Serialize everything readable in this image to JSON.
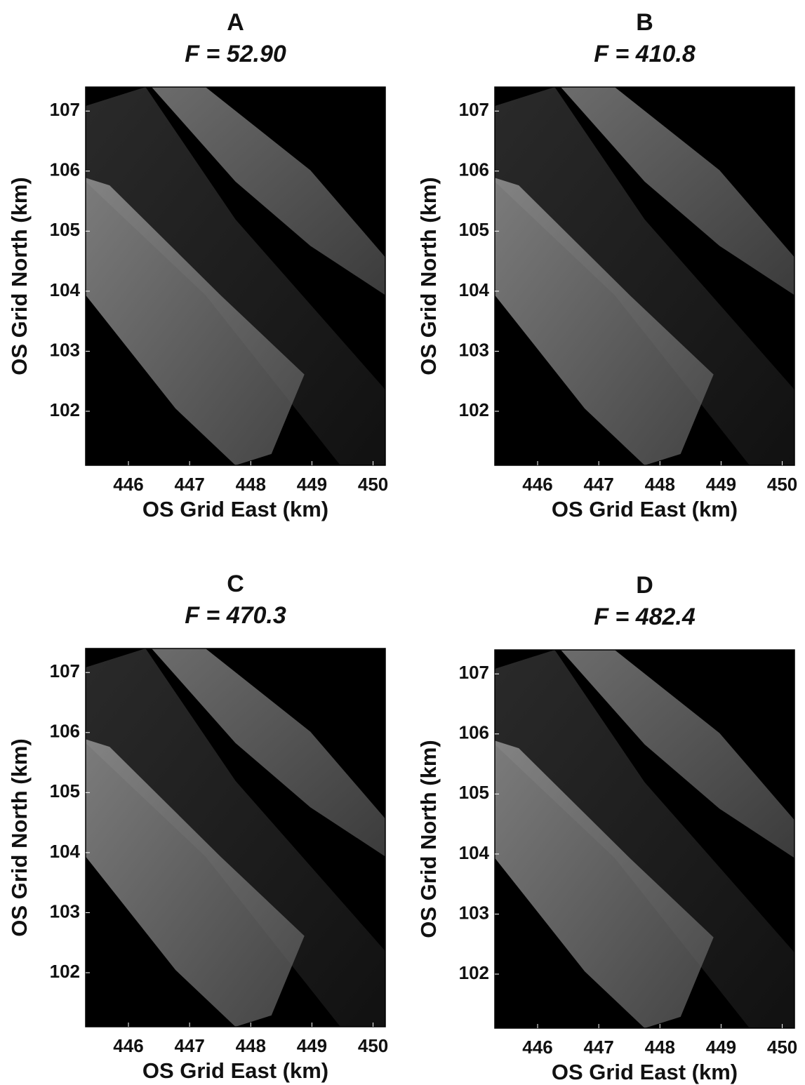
{
  "chart_data": [
    {
      "type": "image",
      "title": "A",
      "subtitle": "F = 52.90",
      "x_label": "OS Grid East (km)",
      "y_label": "OS Grid North (km)",
      "xlim": [
        445.3,
        450.2
      ],
      "xticks": [
        446,
        447,
        448,
        449,
        450
      ],
      "ylim": [
        101.1,
        107.4
      ],
      "yticks": [
        102,
        103,
        104,
        105,
        106,
        107
      ]
    },
    {
      "type": "image",
      "title": "B",
      "subtitle": "F = 410.8",
      "x_label": "OS Grid East (km)",
      "y_label": "OS Grid North (km)",
      "xlim": [
        445.3,
        450.2
      ],
      "xticks": [
        446,
        447,
        448,
        449,
        450
      ],
      "ylim": [
        101.1,
        107.4
      ],
      "yticks": [
        102,
        103,
        104,
        105,
        106,
        107
      ]
    },
    {
      "type": "image",
      "title": "C",
      "subtitle": "F = 470.3",
      "x_label": "OS Grid East (km)",
      "y_label": "OS Grid North (km)",
      "xlim": [
        445.3,
        450.2
      ],
      "xticks": [
        446,
        447,
        448,
        449,
        450
      ],
      "ylim": [
        101.1,
        107.4
      ],
      "yticks": [
        102,
        103,
        104,
        105,
        106,
        107
      ]
    },
    {
      "type": "image",
      "title": "D",
      "subtitle": "F = 482.4",
      "x_label": "OS Grid East (km)",
      "y_label": "OS Grid North (km)",
      "xlim": [
        445.3,
        450.2
      ],
      "xticks": [
        446,
        447,
        448,
        449,
        450
      ],
      "ylim": [
        101.1,
        107.4
      ],
      "yticks": [
        102,
        103,
        104,
        105,
        106,
        107
      ]
    }
  ]
}
